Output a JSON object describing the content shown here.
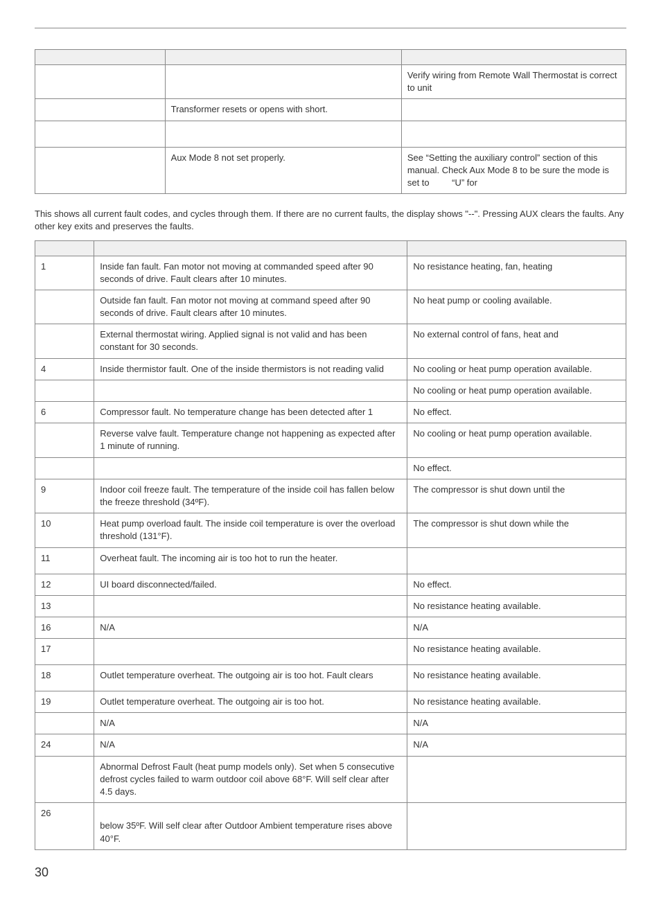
{
  "table1": {
    "rows": [
      {
        "c1": "",
        "c2": "",
        "c3": "",
        "header": true
      },
      {
        "c1": "",
        "c2": "",
        "c3": "Verify wiring from Remote Wall Thermostat is correct to unit"
      },
      {
        "c1": "",
        "c2": "Transformer resets or opens with short.",
        "c3": ""
      },
      {
        "c1": "",
        "c2": "",
        "c3": "",
        "tall": true
      },
      {
        "c1": "",
        "c2": "Aux Mode 8 not set properly.",
        "c3": "See “Setting the auxiliary control” section of this manual. Check Aux Mode 8 to be sure the mode is set to         “U” for"
      }
    ]
  },
  "intro": "This shows all current fault codes, and cycles through them. If there are no current faults, the display shows \"--\". Pressing AUX clears the faults. Any other key exits and preserves the faults.",
  "table2": {
    "rows": [
      {
        "num": "",
        "desc": "",
        "eff": "",
        "header": true
      },
      {
        "num": "1",
        "desc": "Inside fan fault. Fan motor not moving at commanded speed after 90 seconds of drive. Fault clears after 10 minutes.",
        "eff": "No resistance heating, fan, heating"
      },
      {
        "num": "",
        "desc": "Outside fan fault. Fan motor not moving at command speed after 90 seconds of drive. Fault clears after 10 minutes.",
        "eff": "No heat pump or cooling available."
      },
      {
        "num": "",
        "desc": "External thermostat wiring. Applied signal is not valid and has been constant for 30 seconds.",
        "eff": "No external control of fans, heat and"
      },
      {
        "num": "4",
        "desc": "Inside thermistor fault. One of the inside thermistors is not reading valid",
        "eff": "No cooling or heat pump operation available."
      },
      {
        "num": "",
        "desc": "",
        "eff": "No cooling or heat pump operation available."
      },
      {
        "num": "6",
        "desc": "Compressor fault. No temperature change has been detected after 1",
        "eff": "No effect."
      },
      {
        "num": "",
        "desc": "Reverse valve fault. Temperature change not happening as expected after 1 minute of running.",
        "eff": "No cooling or heat pump operation available."
      },
      {
        "num": "",
        "desc": "",
        "eff": "No effect."
      },
      {
        "num": "9",
        "desc": "Indoor coil freeze fault. The temperature of the inside coil has fallen below the freeze threshold (34ºF).",
        "eff": "The compressor is shut down until the"
      },
      {
        "num": "10",
        "desc": "Heat pump overload fault. The inside coil temperature is over the overload threshold (131°F).",
        "eff": "The compressor is shut down while the"
      },
      {
        "num": "11",
        "desc": "Overheat fault. The incoming air is too hot to run the heater.",
        "eff": "",
        "tall": true
      },
      {
        "num": "12",
        "desc": "UI board disconnected/failed.",
        "eff": "No effect."
      },
      {
        "num": "13",
        "desc": "",
        "eff": "No resistance heating available."
      },
      {
        "num": "16",
        "desc": "N/A",
        "eff": "N/A"
      },
      {
        "num": "17",
        "desc": "",
        "eff": "No resistance heating available.",
        "tall": true
      },
      {
        "num": "18",
        "desc": "Outlet temperature overheat. The outgoing air is too hot. Fault clears",
        "eff": "No resistance heating available.",
        "tall": true
      },
      {
        "num": "19",
        "desc": "Outlet temperature overheat. The outgoing air is too hot.",
        "eff": "No resistance heating available."
      },
      {
        "num": "",
        "desc": "N/A",
        "eff": "N/A"
      },
      {
        "num": "24",
        "desc": "N/A",
        "eff": "N/A"
      },
      {
        "num": "",
        "desc": "Abnormal Defrost Fault (heat pump models only). Set when 5 consecutive defrost cycles failed to warm outdoor coil above 68°F. Will self clear after 4.5 days.",
        "eff": ""
      },
      {
        "num": "26",
        "desc": "\nbelow 35ºF. Will self clear after Outdoor Ambient temperature rises above 40°F.",
        "eff": ""
      }
    ]
  },
  "pageNumber": "30"
}
